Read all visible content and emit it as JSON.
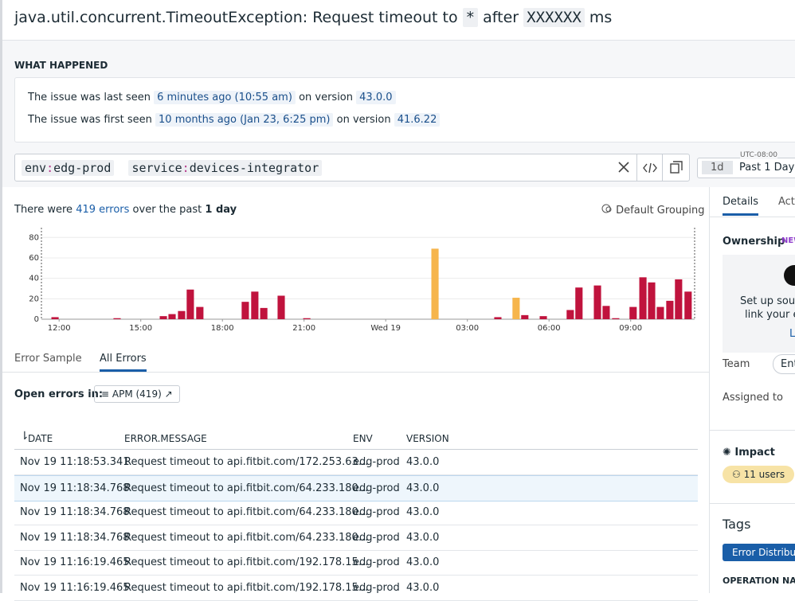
{
  "header": {
    "exception": "java.util.concurrent.TimeoutException:",
    "message_parts": [
      "Request timeout to",
      "*",
      "after",
      "XXXXXX",
      "ms"
    ]
  },
  "what_happened": {
    "heading": "WHAT HAPPENED",
    "lines": [
      {
        "text": "The issue was last seen",
        "when": "6 minutes ago (10:55 am)",
        "version_label": "on version",
        "version": "43.0.0"
      },
      {
        "text": "The issue was first seen",
        "when": "10 months ago (Jan 23, 6:25 pm)",
        "version_label": "on version",
        "version": "41.6.22"
      }
    ]
  },
  "query": {
    "terms": [
      {
        "key": "env",
        "sep": ":",
        "value": "edg-prod"
      },
      {
        "key": "service",
        "sep": ":",
        "value": "devices-integrator"
      }
    ]
  },
  "time": {
    "timezone": "UTC-08:00",
    "badge": "1d",
    "label": "Past 1 Day"
  },
  "summary": {
    "prefix": "There were",
    "count": "419 errors",
    "middle": "over the past",
    "period": "1 day",
    "grouping": "Default Grouping"
  },
  "chart_data": {
    "type": "bar",
    "xlim": [
      11.35,
      35.35
    ],
    "xticks": [
      {
        "value": 12,
        "label": "12:00"
      },
      {
        "value": 15,
        "label": "15:00"
      },
      {
        "value": 18,
        "label": "18:00"
      },
      {
        "value": 21,
        "label": "21:00"
      },
      {
        "value": 24,
        "label": "Wed 19"
      },
      {
        "value": 27,
        "label": "03:00"
      },
      {
        "value": 30,
        "label": "06:00"
      },
      {
        "value": 33,
        "label": "09:00"
      }
    ],
    "ylim": [
      0,
      88
    ],
    "yticks": [
      0,
      20,
      40,
      60,
      80
    ],
    "grid": true,
    "x": [
      11.85,
      14.13,
      15.83,
      16.15,
      16.5,
      16.82,
      17.17,
      18.84,
      19.19,
      19.52,
      20.16,
      21.1,
      25.81,
      28.12,
      28.79,
      29.11,
      29.79,
      30.78,
      31.1,
      31.78,
      32.1,
      32.45,
      33.09,
      33.45,
      33.77,
      34.09,
      34.44,
      34.76,
      35.11
    ],
    "values": [
      2,
      1,
      3,
      5,
      8,
      29,
      12,
      17,
      27,
      11,
      23,
      1,
      69,
      2,
      21,
      4,
      3,
      9,
      31,
      33,
      13,
      1,
      12,
      41,
      36,
      12,
      18,
      39,
      27
    ],
    "colors": [
      "#c0133d",
      "#c0133d",
      "#c0133d",
      "#c0133d",
      "#c0133d",
      "#c0133d",
      "#c0133d",
      "#c0133d",
      "#c0133d",
      "#c0133d",
      "#c0133d",
      "#c0133d",
      "#f6b54c",
      "#c0133d",
      "#f6b54c",
      "#c0133d",
      "#c0133d",
      "#c0133d",
      "#c0133d",
      "#c0133d",
      "#c0133d",
      "#c0133d",
      "#c0133d",
      "#c0133d",
      "#c0133d",
      "#c0133d",
      "#c0133d",
      "#c0133d",
      "#c0133d"
    ]
  },
  "tabs": [
    "Error Sample",
    "All Errors"
  ],
  "open_in": {
    "label": "Open errors in:",
    "button": "APM (419)"
  },
  "table": {
    "columns": [
      "DATE",
      "ERROR.MESSAGE",
      "ENV",
      "VERSION"
    ],
    "rows": [
      [
        "Nov 19 11:18:53.341",
        "Request timeout to api.fitbit.com/172.253.63...",
        "edg-prod",
        "43.0.0"
      ],
      [
        "Nov 19 11:18:34.768",
        "Request timeout to api.fitbit.com/64.233.180...",
        "edg-prod",
        "43.0.0"
      ],
      [
        "Nov 19 11:18:34.768",
        "Request timeout to api.fitbit.com/64.233.180...",
        "edg-prod",
        "43.0.0"
      ],
      [
        "Nov 19 11:18:34.768",
        "Request timeout to api.fitbit.com/64.233.180...",
        "edg-prod",
        "43.0.0"
      ],
      [
        "Nov 19 11:16:19.465",
        "Request timeout to api.fitbit.com/192.178.15...",
        "edg-prod",
        "43.0.0"
      ],
      [
        "Nov 19 11:16:19.465",
        "Request timeout to api.fitbit.com/192.178.15...",
        "edg-prod",
        "43.0.0"
      ]
    ]
  },
  "side": {
    "tabs": [
      "Details",
      "Acti"
    ],
    "ownership": "Ownership",
    "badge": "NEW",
    "setup": [
      "Set up sourc",
      "link your ex"
    ],
    "link": "L",
    "team_label": "Team",
    "team_value": "Ent",
    "assigned": "Assigned to",
    "impact": "Impact",
    "users": "11 users",
    "tags": "Tags",
    "tag_button": "Error Distributi",
    "operation": "OPERATION NAM"
  }
}
